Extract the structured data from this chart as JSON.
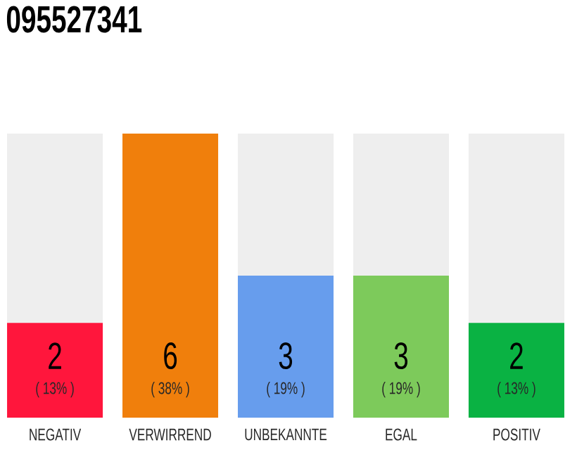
{
  "chart_data": {
    "type": "bar",
    "title": "095527341",
    "categories": [
      "NEGATIV",
      "VERWIRREND",
      "UNBEKANNTE",
      "EGAL",
      "POSITIV"
    ],
    "values": [
      2,
      6,
      3,
      3,
      2
    ],
    "colors": [
      "#ff163c",
      "#f07f0c",
      "#679ded",
      "#7dca5b",
      "#0ab243"
    ],
    "data_labels": true,
    "annotations": [
      "( 13% )",
      "( 38% )",
      "( 19% )",
      "( 19% )",
      "( 13% )"
    ]
  }
}
